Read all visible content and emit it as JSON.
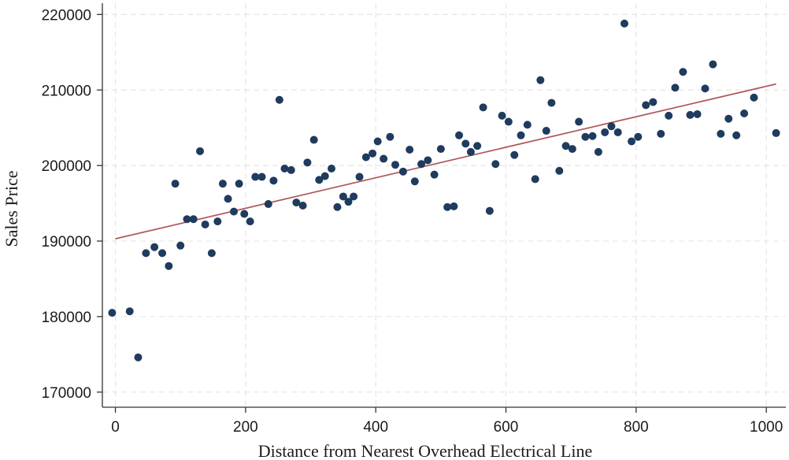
{
  "chart_data": {
    "type": "scatter",
    "title": "",
    "xlabel": "Distance from Nearest Overhead Electrical Line",
    "ylabel": "Sales Price",
    "xlim": [
      -20,
      1030
    ],
    "ylim": [
      168000,
      221500
    ],
    "xticks": [
      0,
      200,
      400,
      600,
      800,
      1000
    ],
    "yticks": [
      170000,
      180000,
      190000,
      200000,
      210000,
      220000
    ],
    "grid": true,
    "colors": {
      "points": "#1f3b5e",
      "fit_line": "#b05a5a",
      "grid": "#e6e6e6",
      "axis": "#333333"
    },
    "series": [
      {
        "type": "scatter",
        "points": [
          [
            -5,
            180500
          ],
          [
            22,
            180700
          ],
          [
            35,
            174600
          ],
          [
            47,
            188400
          ],
          [
            60,
            189200
          ],
          [
            72,
            188400
          ],
          [
            82,
            186700
          ],
          [
            92,
            197600
          ],
          [
            100,
            189400
          ],
          [
            110,
            192900
          ],
          [
            120,
            192900
          ],
          [
            130,
            201900
          ],
          [
            138,
            192200
          ],
          [
            148,
            188400
          ],
          [
            157,
            192600
          ],
          [
            165,
            197600
          ],
          [
            173,
            195600
          ],
          [
            182,
            193900
          ],
          [
            190,
            197600
          ],
          [
            198,
            193600
          ],
          [
            207,
            192600
          ],
          [
            215,
            198500
          ],
          [
            225,
            198500
          ],
          [
            235,
            194900
          ],
          [
            243,
            198000
          ],
          [
            252,
            208700
          ],
          [
            260,
            199600
          ],
          [
            270,
            199400
          ],
          [
            278,
            195100
          ],
          [
            288,
            194700
          ],
          [
            295,
            200400
          ],
          [
            305,
            203400
          ],
          [
            313,
            198100
          ],
          [
            322,
            198600
          ],
          [
            332,
            199600
          ],
          [
            341,
            194500
          ],
          [
            350,
            195900
          ],
          [
            358,
            195200
          ],
          [
            366,
            195900
          ],
          [
            375,
            198500
          ],
          [
            385,
            201100
          ],
          [
            395,
            201600
          ],
          [
            403,
            203200
          ],
          [
            412,
            200900
          ],
          [
            422,
            203800
          ],
          [
            430,
            200100
          ],
          [
            442,
            199200
          ],
          [
            452,
            202100
          ],
          [
            460,
            197900
          ],
          [
            470,
            200200
          ],
          [
            480,
            200700
          ],
          [
            490,
            198800
          ],
          [
            500,
            202200
          ],
          [
            510,
            194500
          ],
          [
            520,
            194600
          ],
          [
            528,
            204000
          ],
          [
            538,
            202900
          ],
          [
            546,
            201800
          ],
          [
            556,
            202600
          ],
          [
            565,
            207700
          ],
          [
            575,
            194000
          ],
          [
            584,
            200200
          ],
          [
            594,
            206600
          ],
          [
            604,
            205800
          ],
          [
            613,
            201400
          ],
          [
            623,
            204000
          ],
          [
            633,
            205400
          ],
          [
            645,
            198200
          ],
          [
            653,
            211300
          ],
          [
            662,
            204600
          ],
          [
            670,
            208300
          ],
          [
            682,
            199300
          ],
          [
            692,
            202600
          ],
          [
            702,
            202200
          ],
          [
            712,
            205800
          ],
          [
            722,
            203800
          ],
          [
            733,
            203900
          ],
          [
            742,
            201800
          ],
          [
            752,
            204400
          ],
          [
            762,
            205200
          ],
          [
            772,
            204400
          ],
          [
            782,
            218800
          ],
          [
            793,
            203200
          ],
          [
            803,
            203800
          ],
          [
            815,
            208000
          ],
          [
            826,
            208400
          ],
          [
            838,
            204200
          ],
          [
            850,
            206600
          ],
          [
            860,
            210300
          ],
          [
            872,
            212400
          ],
          [
            883,
            206700
          ],
          [
            894,
            206800
          ],
          [
            906,
            210200
          ],
          [
            918,
            213400
          ],
          [
            930,
            204200
          ],
          [
            942,
            206200
          ],
          [
            954,
            204000
          ],
          [
            966,
            206900
          ],
          [
            981,
            209000
          ],
          [
            1015,
            204300
          ]
        ]
      },
      {
        "type": "line",
        "name": "",
        "x": [
          0,
          1015
        ],
        "y": [
          190300,
          210800
        ]
      }
    ]
  }
}
